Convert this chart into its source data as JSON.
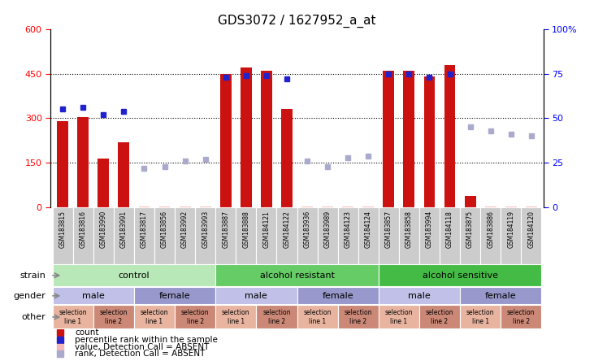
{
  "title": "GDS3072 / 1627952_a_at",
  "samples": [
    "GSM183815",
    "GSM183816",
    "GSM183990",
    "GSM183991",
    "GSM183817",
    "GSM183856",
    "GSM183992",
    "GSM183993",
    "GSM183887",
    "GSM183888",
    "GSM184121",
    "GSM184122",
    "GSM183936",
    "GSM183989",
    "GSM184123",
    "GSM184124",
    "GSM183857",
    "GSM183858",
    "GSM183994",
    "GSM184118",
    "GSM183875",
    "GSM183886",
    "GSM184119",
    "GSM184120"
  ],
  "count_values": [
    290,
    305,
    165,
    220,
    null,
    null,
    null,
    null,
    450,
    470,
    460,
    330,
    null,
    null,
    null,
    null,
    460,
    460,
    440,
    480,
    40,
    null,
    null,
    null
  ],
  "rank_values_pct": [
    55,
    56,
    52,
    54,
    null,
    null,
    null,
    null,
    73,
    74,
    74,
    72,
    null,
    null,
    null,
    null,
    75,
    75,
    73,
    75,
    null,
    null,
    null,
    null
  ],
  "absent_count_values": [
    null,
    null,
    null,
    null,
    5,
    5,
    5,
    5,
    null,
    null,
    null,
    null,
    5,
    5,
    5,
    5,
    null,
    null,
    null,
    null,
    null,
    5,
    5,
    5
  ],
  "absent_rank_pct": [
    null,
    null,
    null,
    null,
    22,
    23,
    26,
    27,
    null,
    null,
    null,
    null,
    26,
    23,
    28,
    29,
    null,
    null,
    null,
    null,
    45,
    43,
    41,
    40
  ],
  "ylim_left": [
    0,
    600
  ],
  "ylim_right": [
    0,
    100
  ],
  "yticks_left": [
    0,
    150,
    300,
    450,
    600
  ],
  "yticks_right": [
    0,
    25,
    50,
    75,
    100
  ],
  "strain_groups": [
    {
      "label": "control",
      "start": 0,
      "end": 8,
      "color": "#b8e8b8"
    },
    {
      "label": "alcohol resistant",
      "start": 8,
      "end": 16,
      "color": "#66cc66"
    },
    {
      "label": "alcohol sensitive",
      "start": 16,
      "end": 24,
      "color": "#44bb44"
    }
  ],
  "gender_groups": [
    {
      "label": "male",
      "start": 0,
      "end": 4,
      "color": "#c0c0e8"
    },
    {
      "label": "female",
      "start": 4,
      "end": 8,
      "color": "#9898cc"
    },
    {
      "label": "male",
      "start": 8,
      "end": 12,
      "color": "#c0c0e8"
    },
    {
      "label": "female",
      "start": 12,
      "end": 16,
      "color": "#9898cc"
    },
    {
      "label": "male",
      "start": 16,
      "end": 20,
      "color": "#c0c0e8"
    },
    {
      "label": "female",
      "start": 20,
      "end": 24,
      "color": "#9898cc"
    }
  ],
  "other_groups": [
    {
      "label": "selection\nline 1",
      "start": 0,
      "end": 2,
      "color": "#e8b4a0"
    },
    {
      "label": "selection\nline 2",
      "start": 2,
      "end": 4,
      "color": "#cc8877"
    },
    {
      "label": "selection\nline 1",
      "start": 4,
      "end": 6,
      "color": "#e8b4a0"
    },
    {
      "label": "selection\nline 2",
      "start": 6,
      "end": 8,
      "color": "#cc8877"
    },
    {
      "label": "selection\nline 1",
      "start": 8,
      "end": 10,
      "color": "#e8b4a0"
    },
    {
      "label": "selection\nline 2",
      "start": 10,
      "end": 12,
      "color": "#cc8877"
    },
    {
      "label": "selection\nline 1",
      "start": 12,
      "end": 14,
      "color": "#e8b4a0"
    },
    {
      "label": "selection\nline 2",
      "start": 14,
      "end": 16,
      "color": "#cc8877"
    },
    {
      "label": "selection\nline 1",
      "start": 16,
      "end": 18,
      "color": "#e8b4a0"
    },
    {
      "label": "selection\nline 2",
      "start": 18,
      "end": 20,
      "color": "#cc8877"
    },
    {
      "label": "selection\nline 1",
      "start": 20,
      "end": 22,
      "color": "#e8b4a0"
    },
    {
      "label": "selection\nline 2",
      "start": 22,
      "end": 24,
      "color": "#cc8877"
    }
  ],
  "bar_color": "#cc1111",
  "rank_color": "#2222cc",
  "absent_bar_color": "#f5b8b8",
  "absent_rank_color": "#aaaacc",
  "legend_items": [
    {
      "label": "count",
      "color": "#cc1111"
    },
    {
      "label": "percentile rank within the sample",
      "color": "#2222cc"
    },
    {
      "label": "value, Detection Call = ABSENT",
      "color": "#f5b8b8"
    },
    {
      "label": "rank, Detection Call = ABSENT",
      "color": "#aaaacc"
    }
  ],
  "xticklabel_bg": "#cccccc",
  "arrow_color": "#888888"
}
